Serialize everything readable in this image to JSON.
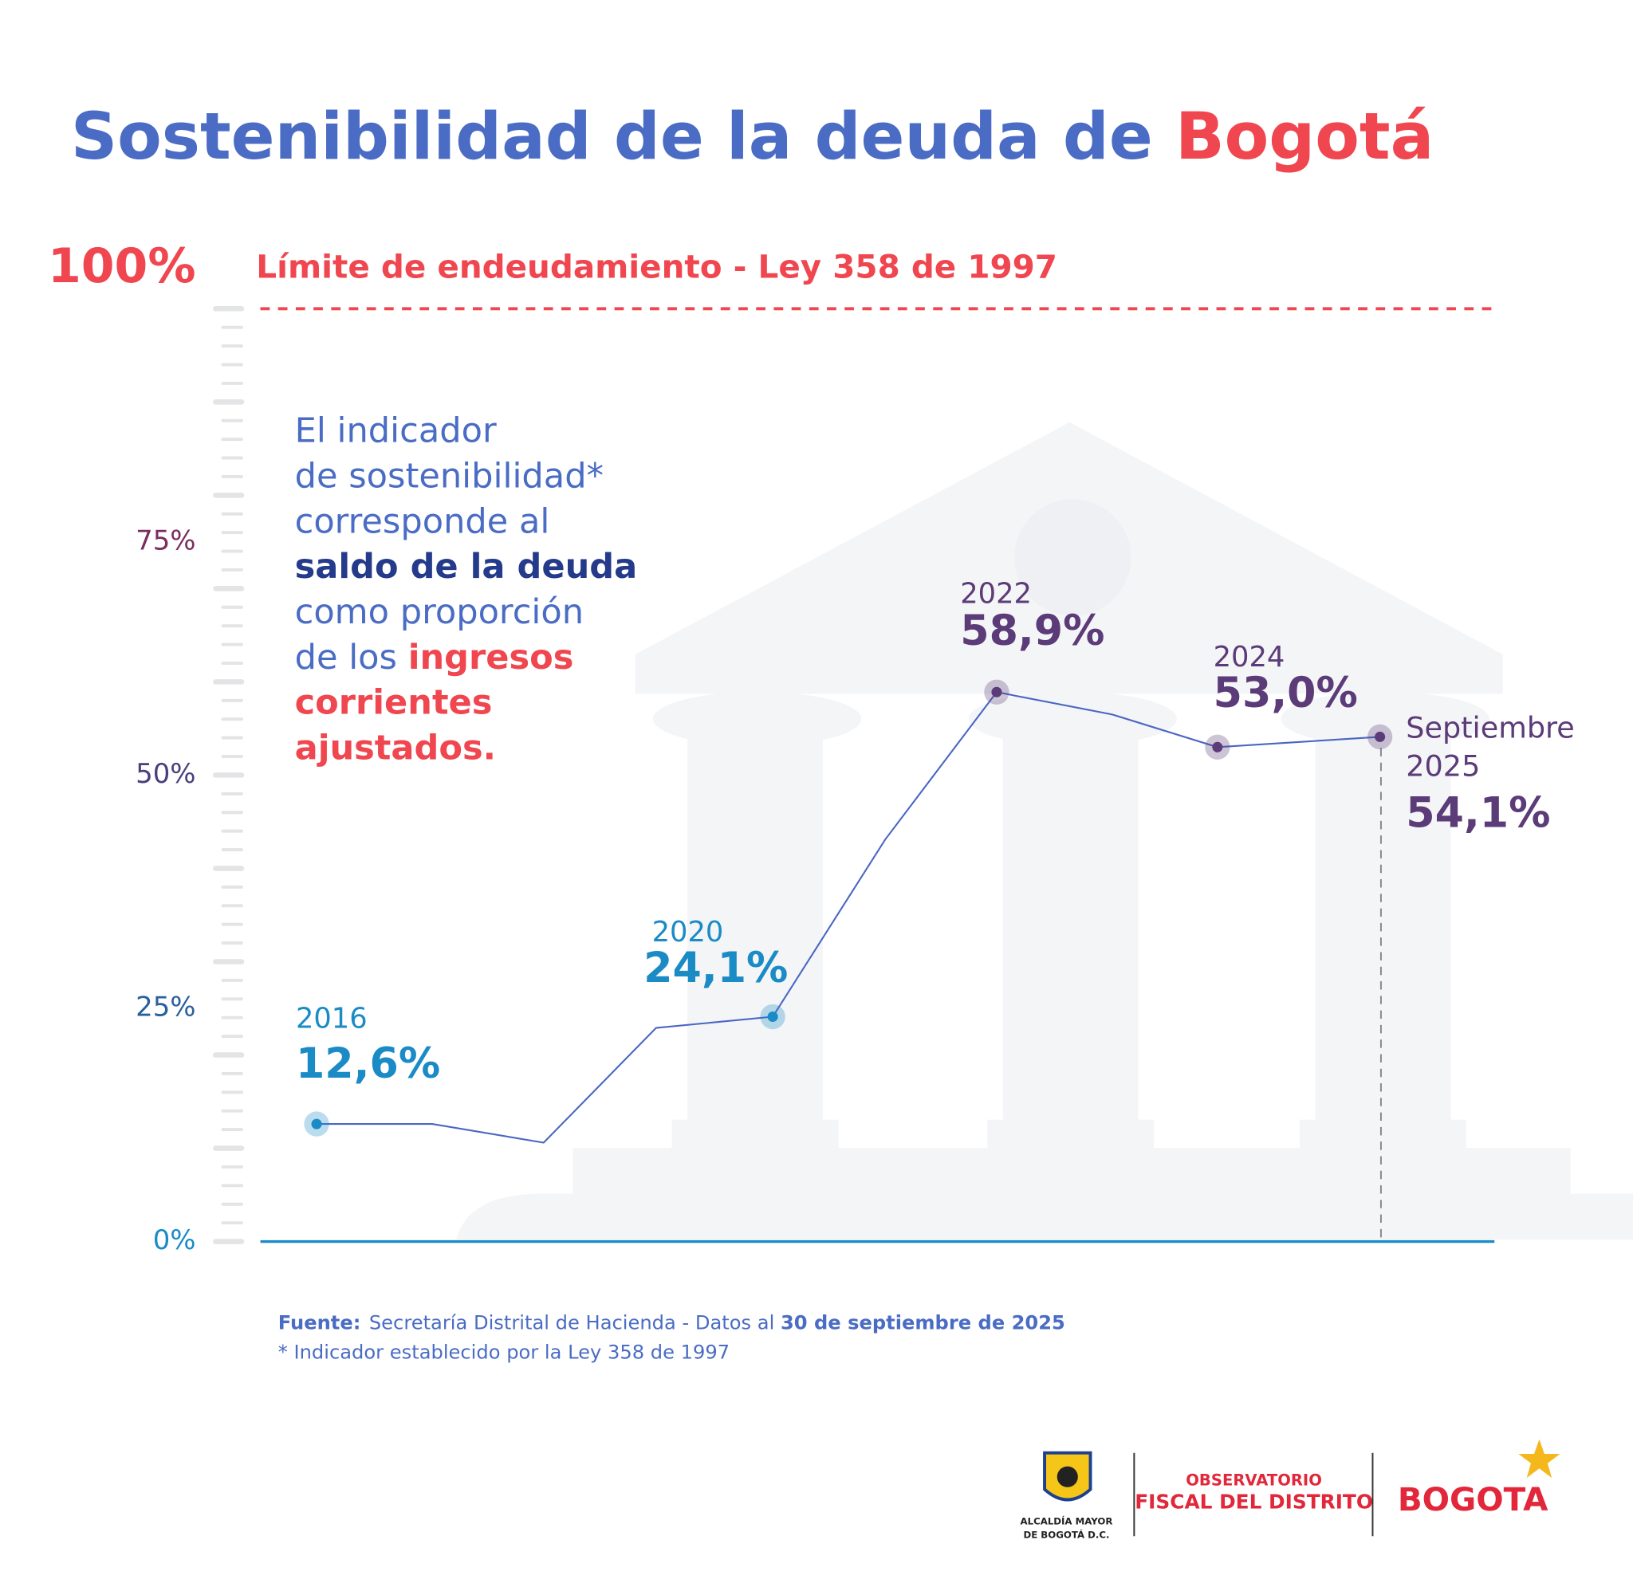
{
  "header": {
    "title_parts": [
      "Sostenibilidad de la deuda de ",
      "Bogotá"
    ]
  },
  "chart_data": {
    "type": "line",
    "categories": [
      "2016",
      null,
      null,
      null,
      "2020",
      null,
      "2022",
      null,
      "2024",
      "Septiembre 2025"
    ],
    "series": [
      {
        "color": "#4a66c4",
        "values": [
          12.6,
          12.6,
          10.6,
          22.9,
          24.1,
          43.1,
          58.9,
          56.5,
          53.0,
          54.1
        ],
        "value_labels": [
          "12,6%",
          null,
          null,
          null,
          "24,1%",
          null,
          "58,9%",
          null,
          "53,0%",
          "54,1%"
        ],
        "label_colors": [
          "#1b8bc6",
          null,
          null,
          null,
          "#1b8bc6",
          null,
          "#5b3b78",
          null,
          "#5b3b78",
          "#5b3b78"
        ]
      }
    ],
    "ylim": [
      0,
      100
    ],
    "yticks": [
      {
        "value": 0,
        "label": "0%"
      },
      {
        "value": 25,
        "label": "25%"
      },
      {
        "value": 50,
        "label": "50%"
      },
      {
        "value": 75,
        "label": "75%"
      },
      {
        "value": 100,
        "label": "100%"
      }
    ],
    "ytick_colors": [
      "#1b8bc6",
      "#2a5f9e",
      "#4a3f7e",
      "#7a2e5e",
      "#f0464f"
    ],
    "limit_label": "Límite de endeudamiento - Ley 358 de 1997",
    "limit_color": "#f0464f",
    "description": [
      [
        {
          "text": "El indicador",
          "style": "normal"
        }
      ],
      [
        {
          "text": "de sostenibilidad*",
          "style": "normal"
        }
      ],
      [
        {
          "text": "corresponde al",
          "style": "normal"
        }
      ],
      [
        {
          "text": "saldo de la deuda",
          "style": "bold"
        }
      ],
      [
        {
          "text": "como proporción",
          "style": "normal"
        }
      ],
      [
        {
          "text": "de los ",
          "style": "normal"
        },
        {
          "text": "ingresos",
          "style": "red"
        }
      ],
      [
        {
          "text": "corrientes",
          "style": "red"
        }
      ],
      [
        {
          "text": "ajustados.",
          "style": "red"
        }
      ]
    ]
  },
  "footer": {
    "source_label": "Fuente:",
    "source_text": "Secretaría Distrital de Hacienda - Datos al ",
    "source_date": "30 de septiembre de 2025",
    "note": "* Indicador establecido por la Ley 358 de 1997",
    "logo1_lines": [
      "ALCALDÍA MAYOR",
      "DE BOGOTÁ D.C."
    ],
    "logo2_lines": [
      "OBSERVATORIO",
      "FISCAL DEL DISTRITO"
    ],
    "logo3": "BOGOTA"
  }
}
